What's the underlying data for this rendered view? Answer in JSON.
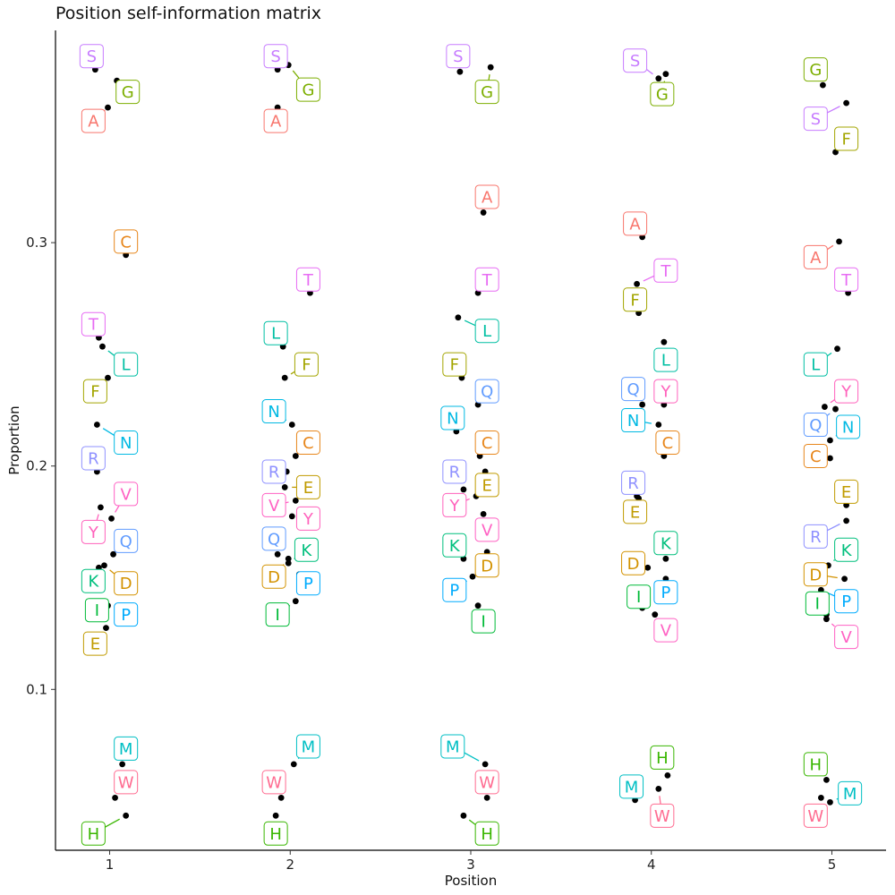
{
  "chart_data": {
    "type": "scatter",
    "title": "Position self-information matrix",
    "xlabel": "Position",
    "ylabel": "Proportion",
    "xticks": [
      "1",
      "2",
      "3",
      "4",
      "5"
    ],
    "yticks": [
      "0.1",
      "0.2",
      "0.3"
    ],
    "ylim": [
      0.028,
      0.395
    ],
    "xlim": [
      0.7,
      5.3
    ],
    "grid": false,
    "legend": "none",
    "colors": {
      "A": "#F8766D",
      "C": "#E7861B",
      "D": "#D39200",
      "E": "#C09B00",
      "F": "#A3A500",
      "G": "#7CAE00",
      "H": "#39B600",
      "I": "#00BA38",
      "K": "#00BF7D",
      "L": "#00BFA3",
      "M": "#00BFC4",
      "N": "#00B9E3",
      "P": "#00ABFD",
      "Q": "#619CFF",
      "R": "#8F91FF",
      "S": "#C77CFF",
      "T": "#E76BF3",
      "V": "#FF61C3",
      "W": "#FF6C91",
      "Y": "#FF62BC"
    },
    "points": [
      {
        "pos": 1,
        "x": 0.92,
        "y": 0.3775,
        "label": "S",
        "lx": 0.9,
        "ly": 0.3835
      },
      {
        "pos": 1,
        "x": 1.04,
        "y": 0.3725,
        "label": "G",
        "lx": 1.1,
        "ly": 0.3675
      },
      {
        "pos": 1,
        "x": 0.99,
        "y": 0.3605,
        "label": "A",
        "lx": 0.91,
        "ly": 0.3545
      },
      {
        "pos": 1,
        "x": 1.09,
        "y": 0.2945,
        "label": "C",
        "lx": 1.09,
        "ly": 0.3005
      },
      {
        "pos": 1,
        "x": 0.94,
        "y": 0.2575,
        "label": "T",
        "lx": 0.91,
        "ly": 0.2635
      },
      {
        "pos": 1,
        "x": 0.96,
        "y": 0.2535,
        "label": "L",
        "lx": 1.09,
        "ly": 0.2455
      },
      {
        "pos": 1,
        "x": 0.99,
        "y": 0.2395,
        "label": "F",
        "lx": 0.92,
        "ly": 0.2335
      },
      {
        "pos": 1,
        "x": 0.93,
        "y": 0.2185,
        "label": "N",
        "lx": 1.09,
        "ly": 0.2105
      },
      {
        "pos": 1,
        "x": 0.93,
        "y": 0.1975,
        "label": "R",
        "lx": 0.91,
        "ly": 0.2035
      },
      {
        "pos": 1,
        "x": 1.01,
        "y": 0.1765,
        "label": "V",
        "lx": 1.09,
        "ly": 0.1875
      },
      {
        "pos": 1,
        "x": 0.95,
        "y": 0.1815,
        "label": "Y",
        "lx": 0.91,
        "ly": 0.1705
      },
      {
        "pos": 1,
        "x": 1.02,
        "y": 0.1605,
        "label": "Q",
        "lx": 1.09,
        "ly": 0.1665
      },
      {
        "pos": 1,
        "x": 0.97,
        "y": 0.1555,
        "label": "D",
        "lx": 1.09,
        "ly": 0.1475
      },
      {
        "pos": 1,
        "x": 0.94,
        "y": 0.1545,
        "label": "K",
        "lx": 0.91,
        "ly": 0.1485
      },
      {
        "pos": 1,
        "x": 0.99,
        "y": 0.1375,
        "label": "P",
        "lx": 1.09,
        "ly": 0.1335
      },
      {
        "pos": 1,
        "x": 0.96,
        "y": 0.1385,
        "label": "I",
        "lx": 0.93,
        "ly": 0.1355
      },
      {
        "pos": 1,
        "x": 0.98,
        "y": 0.1275,
        "label": "E",
        "lx": 0.92,
        "ly": 0.1205
      },
      {
        "pos": 1,
        "x": 1.07,
        "y": 0.0665,
        "label": "M",
        "lx": 1.09,
        "ly": 0.0735
      },
      {
        "pos": 1,
        "x": 1.03,
        "y": 0.0515,
        "label": "W",
        "lx": 1.09,
        "ly": 0.0585
      },
      {
        "pos": 1,
        "x": 1.09,
        "y": 0.0435,
        "label": "H",
        "lx": 0.91,
        "ly": 0.0355
      },
      {
        "pos": 2,
        "x": 1.93,
        "y": 0.3775,
        "label": "S",
        "lx": 1.92,
        "ly": 0.3835
      },
      {
        "pos": 2,
        "x": 1.99,
        "y": 0.3795,
        "label": "G",
        "lx": 2.1,
        "ly": 0.3685
      },
      {
        "pos": 2,
        "x": 1.93,
        "y": 0.3605,
        "label": "A",
        "lx": 1.92,
        "ly": 0.3545
      },
      {
        "pos": 2,
        "x": 2.11,
        "y": 0.2775,
        "label": "T",
        "lx": 2.1,
        "ly": 0.2835
      },
      {
        "pos": 2,
        "x": 1.96,
        "y": 0.2535,
        "label": "L",
        "lx": 1.92,
        "ly": 0.2595
      },
      {
        "pos": 2,
        "x": 1.97,
        "y": 0.2395,
        "label": "F",
        "lx": 2.09,
        "ly": 0.2455
      },
      {
        "pos": 2,
        "x": 2.01,
        "y": 0.2185,
        "label": "N",
        "lx": 1.91,
        "ly": 0.2245
      },
      {
        "pos": 2,
        "x": 2.03,
        "y": 0.2045,
        "label": "C",
        "lx": 2.1,
        "ly": 0.2105
      },
      {
        "pos": 2,
        "x": 1.98,
        "y": 0.1975,
        "label": "R",
        "lx": 1.91,
        "ly": 0.1975
      },
      {
        "pos": 2,
        "x": 1.97,
        "y": 0.1905,
        "label": "E",
        "lx": 2.1,
        "ly": 0.1905
      },
      {
        "pos": 2,
        "x": 2.03,
        "y": 0.1845,
        "label": "V",
        "lx": 1.91,
        "ly": 0.1825
      },
      {
        "pos": 2,
        "x": 2.01,
        "y": 0.1775,
        "label": "Y",
        "lx": 2.1,
        "ly": 0.1765
      },
      {
        "pos": 2,
        "x": 1.93,
        "y": 0.1605,
        "label": "Q",
        "lx": 1.91,
        "ly": 0.1675
      },
      {
        "pos": 2,
        "x": 1.99,
        "y": 0.1565,
        "label": "K",
        "lx": 2.09,
        "ly": 0.1625
      },
      {
        "pos": 2,
        "x": 1.99,
        "y": 0.1585,
        "label": "D",
        "lx": 1.91,
        "ly": 0.1505
      },
      {
        "pos": 2,
        "x": 2.05,
        "y": 0.1515,
        "label": "P",
        "lx": 2.1,
        "ly": 0.1475
      },
      {
        "pos": 2,
        "x": 2.03,
        "y": 0.1395,
        "label": "I",
        "lx": 1.93,
        "ly": 0.1335
      },
      {
        "pos": 2,
        "x": 2.02,
        "y": 0.0665,
        "label": "M",
        "lx": 2.1,
        "ly": 0.0745
      },
      {
        "pos": 2,
        "x": 1.95,
        "y": 0.0515,
        "label": "W",
        "lx": 1.91,
        "ly": 0.0585
      },
      {
        "pos": 2,
        "x": 1.92,
        "y": 0.0435,
        "label": "H",
        "lx": 1.92,
        "ly": 0.0355
      },
      {
        "pos": 3,
        "x": 2.94,
        "y": 0.3765,
        "label": "S",
        "lx": 2.93,
        "ly": 0.3835
      },
      {
        "pos": 3,
        "x": 3.11,
        "y": 0.3785,
        "label": "G",
        "lx": 3.09,
        "ly": 0.3675
      },
      {
        "pos": 3,
        "x": 3.07,
        "y": 0.3135,
        "label": "A",
        "lx": 3.09,
        "ly": 0.3205
      },
      {
        "pos": 3,
        "x": 3.04,
        "y": 0.2775,
        "label": "T",
        "lx": 3.09,
        "ly": 0.2835
      },
      {
        "pos": 3,
        "x": 2.93,
        "y": 0.2665,
        "label": "L",
        "lx": 3.09,
        "ly": 0.2605
      },
      {
        "pos": 3,
        "x": 2.95,
        "y": 0.2395,
        "label": "F",
        "lx": 2.91,
        "ly": 0.2455
      },
      {
        "pos": 3,
        "x": 3.04,
        "y": 0.2275,
        "label": "Q",
        "lx": 3.09,
        "ly": 0.2335
      },
      {
        "pos": 3,
        "x": 2.92,
        "y": 0.2155,
        "label": "N",
        "lx": 2.9,
        "ly": 0.2215
      },
      {
        "pos": 3,
        "x": 3.05,
        "y": 0.2045,
        "label": "C",
        "lx": 3.09,
        "ly": 0.2105
      },
      {
        "pos": 3,
        "x": 3.08,
        "y": 0.1975,
        "label": "E",
        "lx": 3.09,
        "ly": 0.1915
      },
      {
        "pos": 3,
        "x": 2.96,
        "y": 0.1895,
        "label": "R",
        "lx": 2.91,
        "ly": 0.1975
      },
      {
        "pos": 3,
        "x": 3.03,
        "y": 0.1865,
        "label": "Y",
        "lx": 2.91,
        "ly": 0.1825
      },
      {
        "pos": 3,
        "x": 3.07,
        "y": 0.1785,
        "label": "V",
        "lx": 3.09,
        "ly": 0.1715
      },
      {
        "pos": 3,
        "x": 2.96,
        "y": 0.1585,
        "label": "K",
        "lx": 2.91,
        "ly": 0.1645
      },
      {
        "pos": 3,
        "x": 3.09,
        "y": 0.1615,
        "label": "D",
        "lx": 3.09,
        "ly": 0.1555
      },
      {
        "pos": 3,
        "x": 3.01,
        "y": 0.1505,
        "label": "P",
        "lx": 2.91,
        "ly": 0.1445
      },
      {
        "pos": 3,
        "x": 3.04,
        "y": 0.1375,
        "label": "I",
        "lx": 3.07,
        "ly": 0.1305
      },
      {
        "pos": 3,
        "x": 3.08,
        "y": 0.0665,
        "label": "M",
        "lx": 2.9,
        "ly": 0.0745
      },
      {
        "pos": 3,
        "x": 3.09,
        "y": 0.0515,
        "label": "W",
        "lx": 3.09,
        "ly": 0.0585
      },
      {
        "pos": 3,
        "x": 2.96,
        "y": 0.0435,
        "label": "H",
        "lx": 3.09,
        "ly": 0.0355
      },
      {
        "pos": 4,
        "x": 4.04,
        "y": 0.3735,
        "label": "S",
        "lx": 3.91,
        "ly": 0.3815
      },
      {
        "pos": 4,
        "x": 4.08,
        "y": 0.3755,
        "label": "G",
        "lx": 4.06,
        "ly": 0.3665
      },
      {
        "pos": 4,
        "x": 3.95,
        "y": 0.3025,
        "label": "A",
        "lx": 3.91,
        "ly": 0.3085
      },
      {
        "pos": 4,
        "x": 3.92,
        "y": 0.2815,
        "label": "T",
        "lx": 4.08,
        "ly": 0.2875
      },
      {
        "pos": 4,
        "x": 3.93,
        "y": 0.2685,
        "label": "F",
        "lx": 3.91,
        "ly": 0.2745
      },
      {
        "pos": 4,
        "x": 4.07,
        "y": 0.2555,
        "label": "L",
        "lx": 4.08,
        "ly": 0.2475
      },
      {
        "pos": 4,
        "x": 3.95,
        "y": 0.2275,
        "label": "Q",
        "lx": 3.9,
        "ly": 0.2345
      },
      {
        "pos": 4,
        "x": 4.07,
        "y": 0.2275,
        "label": "Y",
        "lx": 4.08,
        "ly": 0.2335
      },
      {
        "pos": 4,
        "x": 4.04,
        "y": 0.2185,
        "label": "N",
        "lx": 3.9,
        "ly": 0.2205
      },
      {
        "pos": 4,
        "x": 4.07,
        "y": 0.2045,
        "label": "C",
        "lx": 4.09,
        "ly": 0.2105
      },
      {
        "pos": 4,
        "x": 3.92,
        "y": 0.1865,
        "label": "R",
        "lx": 3.9,
        "ly": 0.1925
      },
      {
        "pos": 4,
        "x": 3.93,
        "y": 0.1855,
        "label": "E",
        "lx": 3.91,
        "ly": 0.1795
      },
      {
        "pos": 4,
        "x": 4.08,
        "y": 0.1585,
        "label": "K",
        "lx": 4.08,
        "ly": 0.1655
      },
      {
        "pos": 4,
        "x": 3.98,
        "y": 0.1545,
        "label": "D",
        "lx": 3.9,
        "ly": 0.1565
      },
      {
        "pos": 4,
        "x": 4.08,
        "y": 0.1495,
        "label": "P",
        "lx": 4.08,
        "ly": 0.1435
      },
      {
        "pos": 4,
        "x": 3.95,
        "y": 0.1365,
        "label": "I",
        "lx": 3.93,
        "ly": 0.1415
      },
      {
        "pos": 4,
        "x": 4.02,
        "y": 0.1335,
        "label": "V",
        "lx": 4.08,
        "ly": 0.1265
      },
      {
        "pos": 4,
        "x": 4.09,
        "y": 0.0615,
        "label": "H",
        "lx": 4.06,
        "ly": 0.0695
      },
      {
        "pos": 4,
        "x": 3.91,
        "y": 0.0505,
        "label": "M",
        "lx": 3.89,
        "ly": 0.0565
      },
      {
        "pos": 4,
        "x": 4.04,
        "y": 0.0555,
        "label": "W",
        "lx": 4.06,
        "ly": 0.0435
      },
      {
        "pos": 5,
        "x": 4.95,
        "y": 0.3705,
        "label": "G",
        "lx": 4.91,
        "ly": 0.3775
      },
      {
        "pos": 5,
        "x": 5.08,
        "y": 0.3625,
        "label": "S",
        "lx": 4.91,
        "ly": 0.3555
      },
      {
        "pos": 5,
        "x": 5.02,
        "y": 0.3405,
        "label": "F",
        "lx": 5.08,
        "ly": 0.3465
      },
      {
        "pos": 5,
        "x": 5.04,
        "y": 0.3005,
        "label": "A",
        "lx": 4.91,
        "ly": 0.2935
      },
      {
        "pos": 5,
        "x": 5.09,
        "y": 0.2775,
        "label": "T",
        "lx": 5.08,
        "ly": 0.2835
      },
      {
        "pos": 5,
        "x": 5.03,
        "y": 0.2525,
        "label": "L",
        "lx": 4.91,
        "ly": 0.2455
      },
      {
        "pos": 5,
        "x": 4.96,
        "y": 0.2265,
        "label": "Y",
        "lx": 5.08,
        "ly": 0.2335
      },
      {
        "pos": 5,
        "x": 5.02,
        "y": 0.2255,
        "label": "Q",
        "lx": 4.91,
        "ly": 0.2185
      },
      {
        "pos": 5,
        "x": 4.99,
        "y": 0.2115,
        "label": "N",
        "lx": 5.09,
        "ly": 0.2175
      },
      {
        "pos": 5,
        "x": 4.99,
        "y": 0.2035,
        "label": "C",
        "lx": 4.91,
        "ly": 0.2045
      },
      {
        "pos": 5,
        "x": 5.08,
        "y": 0.1825,
        "label": "E",
        "lx": 5.08,
        "ly": 0.1885
      },
      {
        "pos": 5,
        "x": 5.08,
        "y": 0.1755,
        "label": "R",
        "lx": 4.91,
        "ly": 0.1685
      },
      {
        "pos": 5,
        "x": 4.98,
        "y": 0.1555,
        "label": "K",
        "lx": 5.08,
        "ly": 0.1625
      },
      {
        "pos": 5,
        "x": 5.07,
        "y": 0.1495,
        "label": "D",
        "lx": 4.91,
        "ly": 0.1515
      },
      {
        "pos": 5,
        "x": 4.94,
        "y": 0.1445,
        "label": "P",
        "lx": 5.08,
        "ly": 0.1395
      },
      {
        "pos": 5,
        "x": 4.97,
        "y": 0.1335,
        "label": "I",
        "lx": 4.92,
        "ly": 0.1385
      },
      {
        "pos": 5,
        "x": 4.97,
        "y": 0.1315,
        "label": "V",
        "lx": 5.08,
        "ly": 0.1235
      },
      {
        "pos": 5,
        "x": 4.97,
        "y": 0.0595,
        "label": "H",
        "lx": 4.91,
        "ly": 0.0665
      },
      {
        "pos": 5,
        "x": 4.94,
        "y": 0.0515,
        "label": "W",
        "lx": 4.91,
        "ly": 0.0435
      },
      {
        "pos": 5,
        "x": 4.99,
        "y": 0.0495,
        "label": "M",
        "lx": 5.1,
        "ly": 0.0535
      }
    ]
  }
}
